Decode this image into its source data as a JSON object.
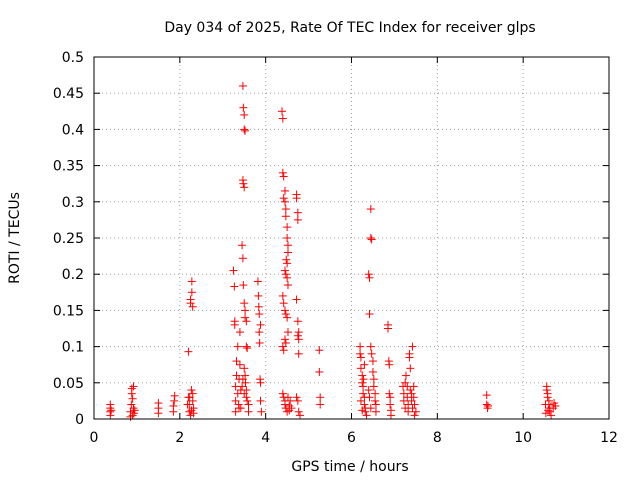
{
  "chart_data": {
    "type": "scatter",
    "title": "Day 034 of 2025, Rate Of TEC Index for receiver glps",
    "xlabel": "GPS time / hours",
    "ylabel": "ROTI / TECUs",
    "xlim": [
      0,
      12
    ],
    "ylim": [
      0,
      0.5
    ],
    "x_ticks": [
      0,
      2,
      4,
      6,
      8,
      10,
      12
    ],
    "y_ticks": [
      0,
      0.05,
      0.1,
      0.15,
      0.2,
      0.25,
      0.3,
      0.35,
      0.4,
      0.45,
      0.5
    ],
    "grid": true,
    "marker": "+",
    "marker_color": "#ff0000",
    "series": [
      {
        "name": "ROTI",
        "points": [
          [
            0.38,
            0.005
          ],
          [
            0.38,
            0.01
          ],
          [
            0.38,
            0.015
          ],
          [
            0.38,
            0.02
          ],
          [
            0.4,
            0.012
          ],
          [
            0.85,
            0.003
          ],
          [
            0.85,
            0.01
          ],
          [
            0.87,
            0.02
          ],
          [
            0.88,
            0.035
          ],
          [
            0.88,
            0.042
          ],
          [
            0.9,
            0.028
          ],
          [
            0.9,
            0.005
          ],
          [
            0.92,
            0.015
          ],
          [
            0.92,
            0.045
          ],
          [
            0.93,
            0.008
          ],
          [
            0.95,
            0.012
          ],
          [
            1.5,
            0.008
          ],
          [
            1.5,
            0.015
          ],
          [
            1.5,
            0.022
          ],
          [
            1.85,
            0.01
          ],
          [
            1.85,
            0.018
          ],
          [
            1.87,
            0.025
          ],
          [
            1.88,
            0.032
          ],
          [
            2.2,
            0.093
          ],
          [
            2.22,
            0.01
          ],
          [
            2.22,
            0.02
          ],
          [
            2.23,
            0.03
          ],
          [
            2.25,
            0.16
          ],
          [
            2.25,
            0.165
          ],
          [
            2.25,
            0.005
          ],
          [
            2.27,
            0.04
          ],
          [
            2.27,
            0.012
          ],
          [
            2.28,
            0.175
          ],
          [
            2.28,
            0.19
          ],
          [
            2.3,
            0.035
          ],
          [
            2.3,
            0.025
          ],
          [
            2.3,
            0.155
          ],
          [
            2.32,
            0.015
          ],
          [
            2.32,
            0.008
          ],
          [
            2.2,
            0.03
          ],
          [
            2.18,
            0.02
          ],
          [
            3.25,
            0.205
          ],
          [
            3.27,
            0.183
          ],
          [
            3.28,
            0.135
          ],
          [
            3.28,
            0.13
          ],
          [
            3.3,
            0.01
          ],
          [
            3.3,
            0.025
          ],
          [
            3.3,
            0.045
          ],
          [
            3.32,
            0.06
          ],
          [
            3.32,
            0.08
          ],
          [
            3.35,
            0.1
          ],
          [
            3.35,
            0.035
          ],
          [
            3.37,
            0.02
          ],
          [
            3.38,
            0.015
          ],
          [
            3.38,
            0.055
          ],
          [
            3.4,
            0.075
          ],
          [
            3.4,
            0.12
          ],
          [
            3.42,
            0.04
          ],
          [
            3.42,
            0.015
          ],
          [
            3.47,
            0.46
          ],
          [
            3.48,
            0.43
          ],
          [
            3.5,
            0.42
          ],
          [
            3.5,
            0.4
          ],
          [
            3.52,
            0.398
          ],
          [
            3.47,
            0.33
          ],
          [
            3.48,
            0.325
          ],
          [
            3.5,
            0.32
          ],
          [
            3.45,
            0.24
          ],
          [
            3.47,
            0.222
          ],
          [
            3.5,
            0.16
          ],
          [
            3.52,
            0.15
          ],
          [
            3.52,
            0.14
          ],
          [
            3.55,
            0.135
          ],
          [
            3.55,
            0.1
          ],
          [
            3.57,
            0.098
          ],
          [
            3.48,
            0.185
          ],
          [
            3.5,
            0.07
          ],
          [
            3.52,
            0.06
          ],
          [
            3.53,
            0.05
          ],
          [
            3.55,
            0.04
          ],
          [
            3.55,
            0.03
          ],
          [
            3.57,
            0.025
          ],
          [
            3.6,
            0.02
          ],
          [
            3.6,
            0.01
          ],
          [
            3.45,
            0.045
          ],
          [
            3.47,
            0.055
          ],
          [
            3.5,
            0.035
          ],
          [
            3.82,
            0.19
          ],
          [
            3.83,
            0.17
          ],
          [
            3.84,
            0.155
          ],
          [
            3.85,
            0.145
          ],
          [
            3.85,
            0.12
          ],
          [
            3.86,
            0.105
          ],
          [
            3.87,
            0.055
          ],
          [
            3.88,
            0.05
          ],
          [
            3.88,
            0.025
          ],
          [
            3.9,
            0.01
          ],
          [
            3.88,
            0.13
          ],
          [
            4.38,
            0.425
          ],
          [
            4.4,
            0.415
          ],
          [
            4.4,
            0.34
          ],
          [
            4.42,
            0.335
          ],
          [
            4.42,
            0.305
          ],
          [
            4.45,
            0.315
          ],
          [
            4.45,
            0.3
          ],
          [
            4.47,
            0.29
          ],
          [
            4.47,
            0.28
          ],
          [
            4.5,
            0.265
          ],
          [
            4.5,
            0.25
          ],
          [
            4.52,
            0.24
          ],
          [
            4.52,
            0.23
          ],
          [
            4.48,
            0.22
          ],
          [
            4.5,
            0.215
          ],
          [
            4.45,
            0.205
          ],
          [
            4.47,
            0.2
          ],
          [
            4.5,
            0.195
          ],
          [
            4.52,
            0.185
          ],
          [
            4.4,
            0.17
          ],
          [
            4.42,
            0.16
          ],
          [
            4.45,
            0.15
          ],
          [
            4.47,
            0.145
          ],
          [
            4.5,
            0.14
          ],
          [
            4.52,
            0.12
          ],
          [
            4.45,
            0.11
          ],
          [
            4.47,
            0.105
          ],
          [
            4.4,
            0.1
          ],
          [
            4.42,
            0.095
          ],
          [
            4.4,
            0.035
          ],
          [
            4.42,
            0.03
          ],
          [
            4.45,
            0.025
          ],
          [
            4.45,
            0.02
          ],
          [
            4.47,
            0.015
          ],
          [
            4.5,
            0.01
          ],
          [
            4.52,
            0.03
          ],
          [
            4.55,
            0.018
          ],
          [
            4.55,
            0.012
          ],
          [
            4.57,
            0.025
          ],
          [
            4.6,
            0.015
          ],
          [
            4.72,
            0.31
          ],
          [
            4.72,
            0.305
          ],
          [
            4.75,
            0.285
          ],
          [
            4.75,
            0.275
          ],
          [
            4.72,
            0.165
          ],
          [
            4.75,
            0.135
          ],
          [
            4.77,
            0.12
          ],
          [
            4.75,
            0.115
          ],
          [
            4.77,
            0.11
          ],
          [
            4.77,
            0.09
          ],
          [
            4.72,
            0.03
          ],
          [
            4.75,
            0.025
          ],
          [
            4.77,
            0.01
          ],
          [
            4.8,
            0.005
          ],
          [
            5.25,
            0.095
          ],
          [
            5.25,
            0.065
          ],
          [
            5.27,
            0.03
          ],
          [
            5.27,
            0.02
          ],
          [
            6.2,
            0.1
          ],
          [
            6.2,
            0.09
          ],
          [
            6.22,
            0.085
          ],
          [
            6.22,
            0.07
          ],
          [
            6.25,
            0.06
          ],
          [
            6.25,
            0.05
          ],
          [
            6.27,
            0.045
          ],
          [
            6.27,
            0.035
          ],
          [
            6.3,
            0.03
          ],
          [
            6.3,
            0.02
          ],
          [
            6.32,
            0.015
          ],
          [
            6.32,
            0.01
          ],
          [
            6.35,
            0.005
          ],
          [
            6.22,
            0.025
          ],
          [
            6.25,
            0.012
          ],
          [
            6.28,
            0.055
          ],
          [
            6.3,
            0.075
          ],
          [
            6.4,
            0.2
          ],
          [
            6.42,
            0.195
          ],
          [
            6.42,
            0.145
          ],
          [
            6.45,
            0.29
          ],
          [
            6.45,
            0.25
          ],
          [
            6.47,
            0.248
          ],
          [
            6.45,
            0.1
          ],
          [
            6.47,
            0.09
          ],
          [
            6.5,
            0.08
          ],
          [
            6.5,
            0.065
          ],
          [
            6.52,
            0.055
          ],
          [
            6.52,
            0.045
          ],
          [
            6.55,
            0.035
          ],
          [
            6.55,
            0.025
          ],
          [
            6.57,
            0.02
          ],
          [
            6.57,
            0.01
          ],
          [
            6.4,
            0.04
          ],
          [
            6.42,
            0.03
          ],
          [
            6.45,
            0.015
          ],
          [
            6.85,
            0.13
          ],
          [
            6.85,
            0.125
          ],
          [
            6.87,
            0.08
          ],
          [
            6.88,
            0.075
          ],
          [
            6.88,
            0.035
          ],
          [
            6.9,
            0.03
          ],
          [
            6.9,
            0.02
          ],
          [
            6.92,
            0.012
          ],
          [
            6.92,
            0.005
          ],
          [
            7.2,
            0.045
          ],
          [
            7.22,
            0.035
          ],
          [
            7.22,
            0.025
          ],
          [
            7.25,
            0.015
          ],
          [
            7.25,
            0.05
          ],
          [
            7.27,
            0.06
          ],
          [
            7.3,
            0.045
          ],
          [
            7.3,
            0.03
          ],
          [
            7.32,
            0.02
          ],
          [
            7.32,
            0.01
          ],
          [
            7.35,
            0.09
          ],
          [
            7.35,
            0.085
          ],
          [
            7.37,
            0.07
          ],
          [
            7.37,
            0.04
          ],
          [
            7.4,
            0.035
          ],
          [
            7.4,
            0.025
          ],
          [
            7.42,
            0.1
          ],
          [
            7.42,
            0.015
          ],
          [
            7.45,
            0.045
          ],
          [
            7.45,
            0.03
          ],
          [
            7.47,
            0.02
          ],
          [
            7.47,
            0.005
          ],
          [
            7.5,
            0.01
          ],
          [
            9.15,
            0.033
          ],
          [
            9.15,
            0.02
          ],
          [
            9.17,
            0.015
          ],
          [
            9.18,
            0.018
          ],
          [
            10.55,
            0.045
          ],
          [
            10.55,
            0.04
          ],
          [
            10.57,
            0.035
          ],
          [
            10.57,
            0.03
          ],
          [
            10.6,
            0.025
          ],
          [
            10.6,
            0.02
          ],
          [
            10.62,
            0.015
          ],
          [
            10.62,
            0.01
          ],
          [
            10.65,
            0.005
          ],
          [
            10.58,
            0.012
          ],
          [
            10.7,
            0.015
          ],
          [
            10.72,
            0.022
          ],
          [
            10.75,
            0.018
          ],
          [
            10.52,
            0.02
          ],
          [
            10.53,
            0.008
          ]
        ]
      }
    ]
  }
}
